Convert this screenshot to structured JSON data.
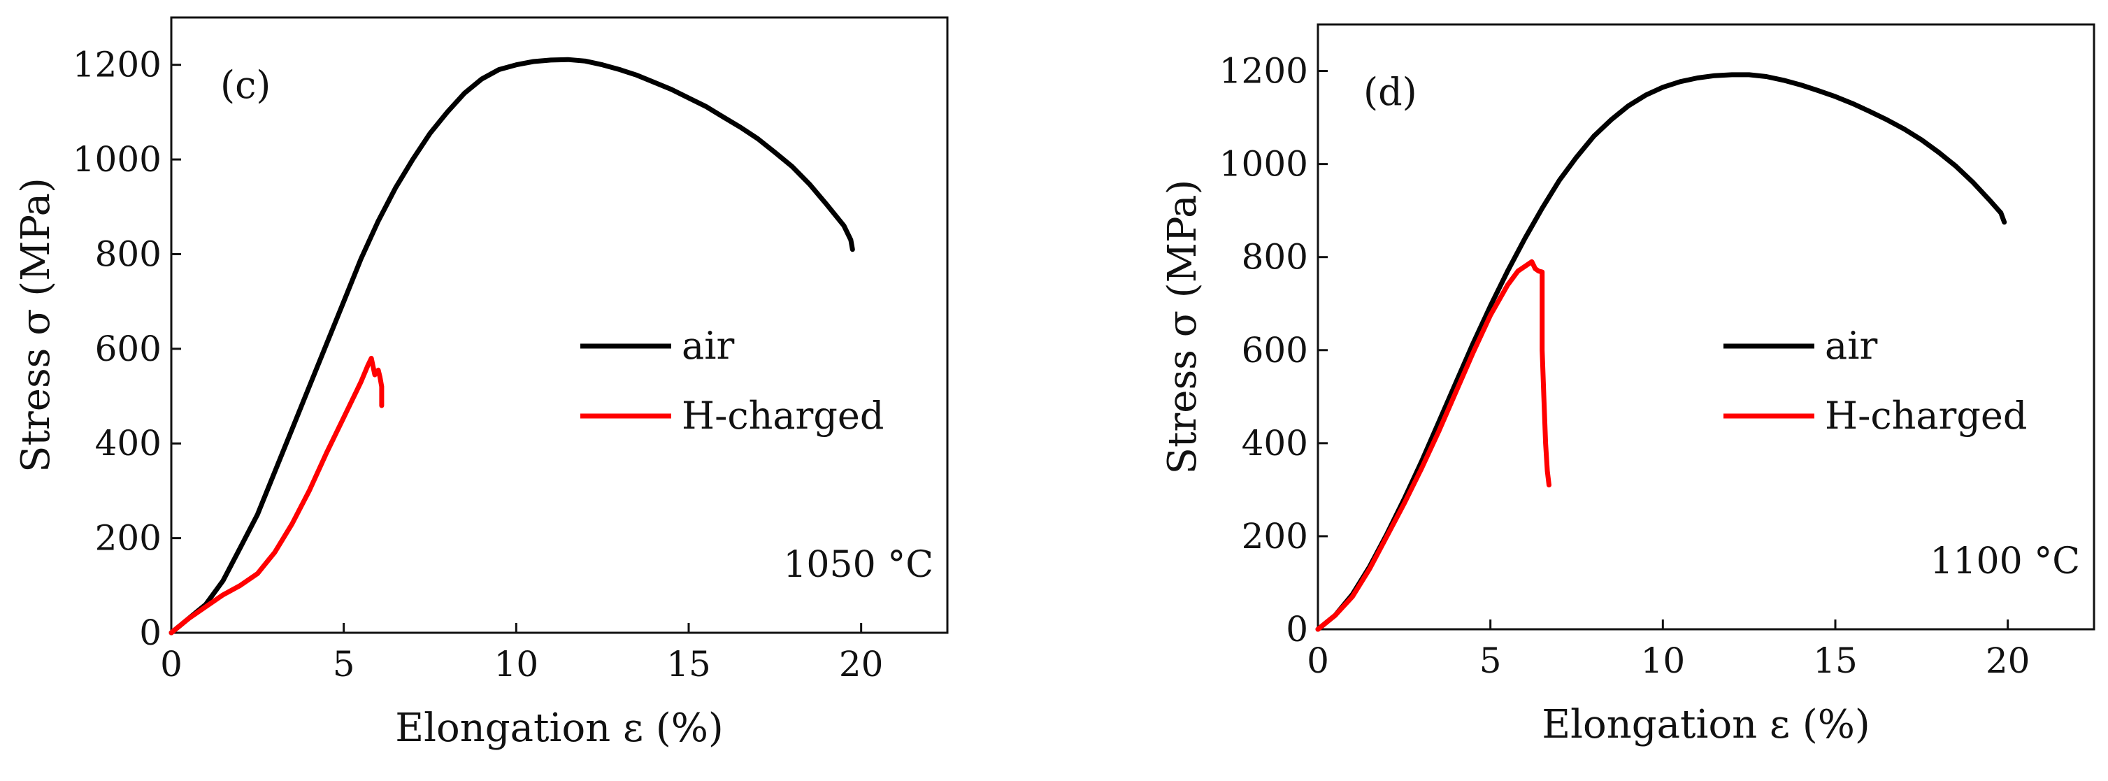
{
  "chart_data": [
    {
      "type": "line",
      "panel_label": "(c)",
      "annotation": "1050 °C",
      "xlabel": "Elongation ε (%)",
      "ylabel": "Stress σ (MPa)",
      "xlim": [
        0,
        22.5
      ],
      "ylim": [
        0,
        1300
      ],
      "xticks": [
        0,
        5,
        10,
        15,
        20
      ],
      "yticks": [
        0,
        200,
        400,
        600,
        800,
        1000,
        1200
      ],
      "legend_position": "center-right",
      "series": [
        {
          "name": "air",
          "color": "#000000",
          "x": [
            0,
            0.5,
            1,
            1.5,
            2,
            2.5,
            3,
            3.5,
            4,
            4.5,
            5,
            5.5,
            6,
            6.5,
            7,
            7.5,
            8,
            8.5,
            9,
            9.5,
            10,
            10.5,
            11,
            11.5,
            12,
            12.5,
            13,
            13.5,
            14,
            14.5,
            15,
            15.5,
            16,
            16.5,
            17,
            17.5,
            18,
            18.5,
            19,
            19.5,
            19.7,
            19.75
          ],
          "y": [
            0,
            30,
            60,
            110,
            180,
            250,
            340,
            430,
            520,
            610,
            700,
            790,
            870,
            940,
            1000,
            1055,
            1100,
            1140,
            1170,
            1190,
            1200,
            1207,
            1210,
            1211,
            1208,
            1200,
            1190,
            1178,
            1163,
            1148,
            1130,
            1112,
            1090,
            1068,
            1044,
            1015,
            985,
            948,
            905,
            860,
            830,
            810
          ]
        },
        {
          "name": "H-charged",
          "color": "#ff0000",
          "x": [
            0,
            0.5,
            1,
            1.5,
            2,
            2.5,
            3,
            3.5,
            4,
            4.5,
            5,
            5.5,
            5.7,
            5.8,
            5.9,
            6.0,
            6.05,
            6.1,
            6.1
          ],
          "y": [
            0,
            30,
            55,
            80,
            100,
            125,
            170,
            230,
            300,
            380,
            455,
            530,
            565,
            580,
            545,
            555,
            540,
            520,
            480
          ]
        }
      ]
    },
    {
      "type": "line",
      "panel_label": "(d)",
      "annotation": "1100 °C",
      "xlabel": "Elongation ε (%)",
      "ylabel": "Stress σ (MPa)",
      "xlim": [
        0,
        22.5
      ],
      "ylim": [
        0,
        1300
      ],
      "xticks": [
        0,
        5,
        10,
        15,
        20
      ],
      "yticks": [
        0,
        200,
        400,
        600,
        800,
        1000,
        1200
      ],
      "legend_position": "center-right",
      "series": [
        {
          "name": "air",
          "color": "#000000",
          "x": [
            0,
            0.5,
            1,
            1.5,
            2,
            2.5,
            3,
            3.5,
            4,
            4.5,
            5,
            5.5,
            6,
            6.5,
            7,
            7.5,
            8,
            8.5,
            9,
            9.5,
            10,
            10.5,
            11,
            11.5,
            12,
            12.5,
            13,
            13.5,
            14,
            14.5,
            15,
            15.5,
            16,
            16.5,
            17,
            17.5,
            18,
            18.5,
            19,
            19.5,
            19.8,
            19.9
          ],
          "y": [
            0,
            30,
            75,
            135,
            205,
            280,
            360,
            445,
            530,
            615,
            695,
            770,
            840,
            905,
            965,
            1015,
            1060,
            1095,
            1125,
            1148,
            1165,
            1177,
            1185,
            1190,
            1192,
            1192,
            1188,
            1180,
            1170,
            1158,
            1145,
            1130,
            1113,
            1095,
            1075,
            1052,
            1025,
            995,
            960,
            920,
            895,
            875
          ]
        },
        {
          "name": "H-charged",
          "color": "#ff0000",
          "x": [
            0,
            0.5,
            1,
            1.5,
            2,
            2.5,
            3,
            3.5,
            4,
            4.5,
            5,
            5.5,
            5.8,
            6.0,
            6.2,
            6.3,
            6.4,
            6.5,
            6.5,
            6.55,
            6.6,
            6.65,
            6.7
          ],
          "y": [
            0,
            30,
            70,
            130,
            200,
            270,
            345,
            425,
            510,
            595,
            675,
            740,
            770,
            780,
            790,
            775,
            770,
            768,
            600,
            500,
            400,
            340,
            310
          ]
        }
      ]
    }
  ]
}
